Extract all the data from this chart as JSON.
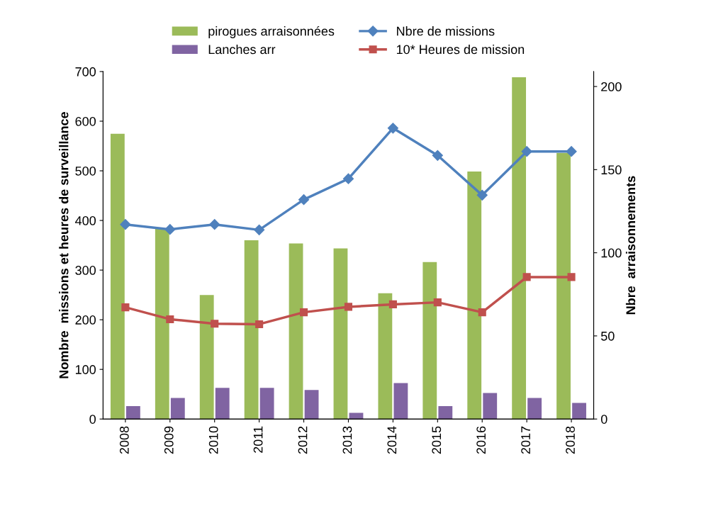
{
  "chart_data": {
    "type": "bar",
    "ylabel": "Nombre  missions et heures de surveillance",
    "y2label": "Nbre  arraisonnements",
    "categories": [
      "2008",
      "2009",
      "2010",
      "2011",
      "2012",
      "2013",
      "2014",
      "2015",
      "2016",
      "2017",
      "2018"
    ],
    "series": [
      {
        "name": "pirogues arraisonnées",
        "axis": "y2",
        "color": "#9bbb59",
        "values": [
          171.6,
          114.6,
          74.6,
          107.5,
          105.6,
          102.6,
          75.7,
          94.4,
          148.9,
          205.6,
          160.1
        ]
      },
      {
        "name": "Lanches arr",
        "axis": "y2",
        "color": "#8064a2",
        "values": [
          7.8,
          12.7,
          18.7,
          18.7,
          17.5,
          3.7,
          21.6,
          7.8,
          15.7,
          12.7,
          9.7
        ]
      },
      {
        "name": "Nbre de missions",
        "type": "line",
        "color": "#4f81bd",
        "marker": "diamond",
        "values": [
          392,
          382,
          392,
          381,
          442,
          484,
          586,
          531,
          451,
          539,
          539
        ]
      },
      {
        "name": "10* Heures de mission",
        "type": "line",
        "color": "#c0504d",
        "marker": "square",
        "values": [
          225,
          201,
          192,
          191,
          215,
          226,
          231,
          235,
          215,
          286,
          286
        ]
      }
    ],
    "ylim": [
      0,
      700
    ],
    "yticks": [
      0,
      100,
      200,
      300,
      400,
      500,
      600,
      700
    ],
    "y2lim": [
      0,
      209
    ],
    "y2ticks": [
      0,
      50,
      100,
      150,
      200
    ],
    "grid": false,
    "legend": "top"
  }
}
